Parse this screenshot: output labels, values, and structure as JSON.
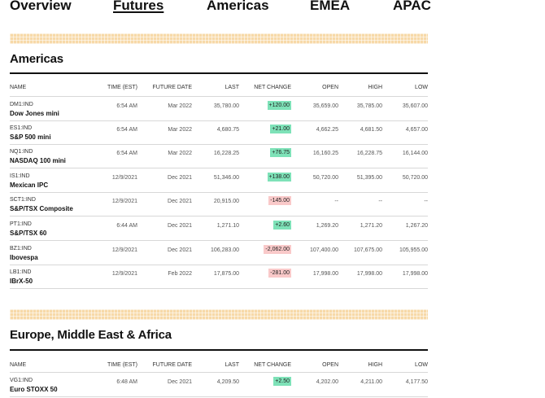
{
  "tabs": [
    {
      "label": "Overview",
      "active": false
    },
    {
      "label": "Futures",
      "active": true
    },
    {
      "label": "Americas",
      "active": false
    },
    {
      "label": "EMEA",
      "active": false
    },
    {
      "label": "APAC",
      "active": false
    }
  ],
  "colors": {
    "positive": "#7ee2b8",
    "negative": "#f9c9c9",
    "stripe": "#f7d9a8"
  },
  "columns": [
    "NAME",
    "TIME (EST)",
    "FUTURE DATE",
    "LAST",
    "NET CHANGE",
    "OPEN",
    "HIGH",
    "LOW"
  ],
  "americas": {
    "title": "Americas",
    "rows": [
      {
        "ticker": "DM1:IND",
        "name": "Dow Jones mini",
        "time": "6:54 AM",
        "future_date": "Mar 2022",
        "last": "35,780.00",
        "change": "+120.00",
        "direction": "up",
        "open": "35,659.00",
        "high": "35,785.00",
        "low": "35,607.00"
      },
      {
        "ticker": "ES1:IND",
        "name": "S&P 500 mini",
        "time": "6:54 AM",
        "future_date": "Mar 2022",
        "last": "4,680.75",
        "change": "+21.00",
        "direction": "up",
        "open": "4,662.25",
        "high": "4,681.50",
        "low": "4,657.00"
      },
      {
        "ticker": "NQ1:IND",
        "name": "NASDAQ 100 mini",
        "time": "6:54 AM",
        "future_date": "Mar 2022",
        "last": "16,228.25",
        "change": "+76.75",
        "direction": "up",
        "open": "16,160.25",
        "high": "16,228.75",
        "low": "16,144.00"
      },
      {
        "ticker": "IS1:IND",
        "name": "Mexican IPC",
        "time": "12/9/2021",
        "future_date": "Dec 2021",
        "last": "51,346.00",
        "change": "+138.00",
        "direction": "up",
        "open": "50,720.00",
        "high": "51,395.00",
        "low": "50,720.00"
      },
      {
        "ticker": "SCT1:IND",
        "name": "S&P/TSX Composite",
        "time": "12/9/2021",
        "future_date": "Dec 2021",
        "last": "20,915.00",
        "change": "-145.00",
        "direction": "down",
        "open": "--",
        "high": "--",
        "low": "--"
      },
      {
        "ticker": "PT1:IND",
        "name": "S&P/TSX 60",
        "time": "6:44 AM",
        "future_date": "Dec 2021",
        "last": "1,271.10",
        "change": "+2.60",
        "direction": "up",
        "open": "1,269.20",
        "high": "1,271.20",
        "low": "1,267.20"
      },
      {
        "ticker": "BZ1:IND",
        "name": "Ibovespa",
        "time": "12/9/2021",
        "future_date": "Dec 2021",
        "last": "106,283.00",
        "change": "-2,062.00",
        "direction": "down",
        "open": "107,400.00",
        "high": "107,675.00",
        "low": "105,955.00"
      },
      {
        "ticker": "LB1:IND",
        "name": "IBrX-50",
        "time": "12/9/2021",
        "future_date": "Feb 2022",
        "last": "17,875.00",
        "change": "-281.00",
        "direction": "down",
        "open": "17,998.00",
        "high": "17,998.00",
        "low": "17,998.00"
      }
    ]
  },
  "emea": {
    "title": "Europe, Middle East & Africa",
    "rows": [
      {
        "ticker": "VG1:IND",
        "name": "Euro STOXX 50",
        "time": "6:48 AM",
        "future_date": "Dec 2021",
        "last": "4,209.50",
        "change": "+2.50",
        "direction": "up",
        "open": "4,202.00",
        "high": "4,211.00",
        "low": "4,177.50"
      }
    ]
  }
}
